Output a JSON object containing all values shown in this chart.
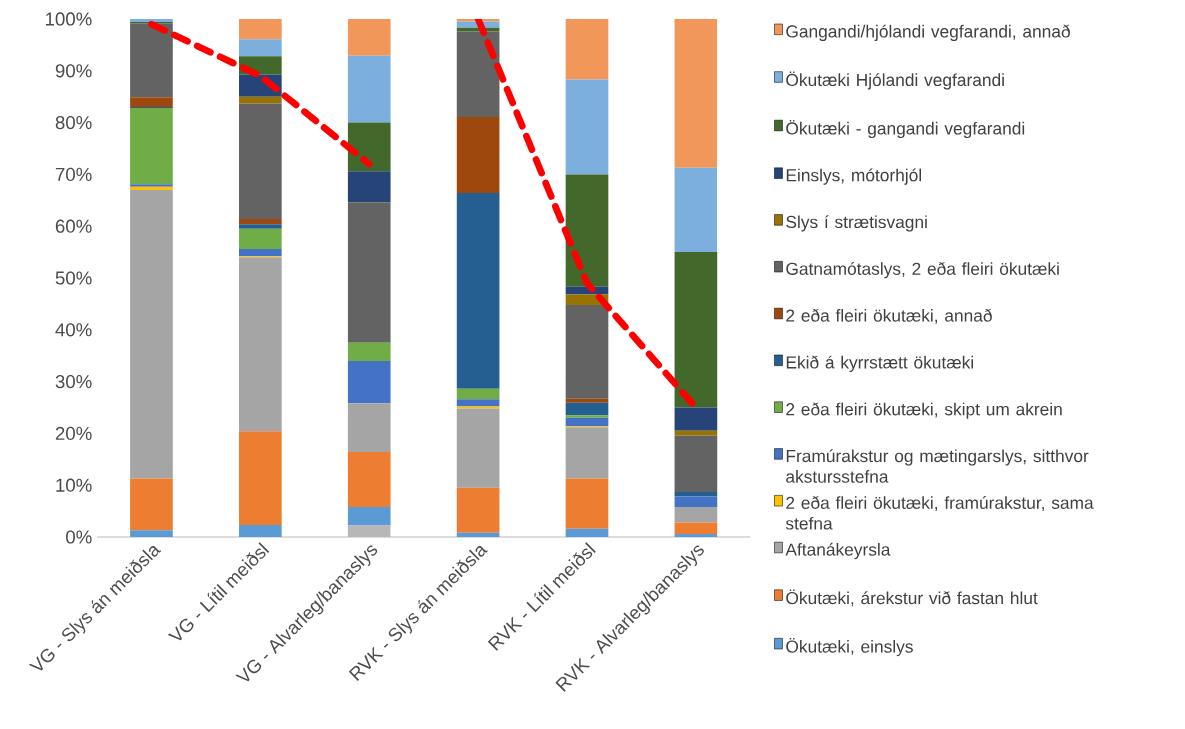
{
  "chart_data": {
    "type": "bar",
    "stacked": true,
    "legend": "right",
    "categories": [
      "VG - Slys án meiðsla",
      "VG - Lítil meiðsl",
      "VG - Alvarleg/banaslys",
      "RVK - Slys án meiðsla",
      "RVK - Lítil meiðsl",
      "RVK - Alvarleg/banaslys"
    ],
    "ylim": [
      0,
      100
    ],
    "yticks": [
      {
        "value": 0,
        "label": "0%"
      },
      {
        "value": 10,
        "label": "10%"
      },
      {
        "value": 20,
        "label": "20%"
      },
      {
        "value": 30,
        "label": "30%"
      },
      {
        "value": 40,
        "label": "40%"
      },
      {
        "value": 50,
        "label": "50%"
      },
      {
        "value": 60,
        "label": "60%"
      },
      {
        "value": 70,
        "label": "70%"
      },
      {
        "value": 80,
        "label": "80%"
      },
      {
        "value": 90,
        "label": "90%"
      },
      {
        "value": 100,
        "label": "100%"
      }
    ],
    "series": [
      {
        "color": "#b7b7b7",
        "values": [
          0,
          0,
          2.2,
          0,
          0,
          0
        ]
      },
      {
        "name": "Ökutæki, einslys",
        "color": "#5b9bd5",
        "values": [
          1.3,
          2.3,
          3.6,
          0.8,
          1.6,
          0.6
        ]
      },
      {
        "name": "Ökutæki, árekstur við fastan hlut",
        "color": "#ed7d31",
        "values": [
          10.0,
          18.1,
          10.6,
          8.7,
          9.7,
          2.2
        ]
      },
      {
        "name": "Aftanákeyrsla",
        "color": "#a5a5a5",
        "values": [
          55.7,
          33.6,
          9.4,
          15.3,
          9.9,
          3.0
        ]
      },
      {
        "name": "2 eða fleiri ökutæki, framúrakstur, sama stefna",
        "color": "#ffc000",
        "values": [
          0.6,
          0.2,
          0,
          0.4,
          0.2,
          0
        ]
      },
      {
        "name": "Framúrakstur og mætingarslys, sitthvor akstursstefna",
        "color": "#4472c4",
        "values": [
          0.5,
          1.4,
          8.2,
          1.4,
          1.6,
          2.0
        ]
      },
      {
        "name": "2 eða fleiri ökutæki, skipt um akrein",
        "color": "#70ad47",
        "values": [
          14.7,
          3.9,
          3.5,
          2.0,
          0.5,
          0
        ]
      },
      {
        "name": "Ekið á kyrrstætt ökutæki",
        "color": "#255e91",
        "values": [
          0.2,
          0.9,
          0,
          37.8,
          2.4,
          0.9
        ]
      },
      {
        "name": "2 eða fleiri ökutæki, annað",
        "color": "#9e480e",
        "values": [
          1.9,
          1.0,
          0,
          14.7,
          0.8,
          0
        ]
      },
      {
        "name": "Gatnamótaslys, 2 eða fleiri ökutæki",
        "color": "#636363",
        "values": [
          14.3,
          22.3,
          27.1,
          16.5,
          18.1,
          10.9
        ]
      },
      {
        "name": "Slys í strætisvagni",
        "color": "#997300",
        "values": [
          0,
          1.3,
          0,
          0,
          2.0,
          0.9
        ]
      },
      {
        "name": "Einslys, mótorhjól",
        "color": "#264478",
        "values": [
          0,
          4.3,
          6.0,
          0,
          1.5,
          4.5
        ]
      },
      {
        "name": "Ökutæki - gangandi vegfarandi",
        "color": "#43682b",
        "values": [
          0.2,
          3.5,
          9.4,
          0.7,
          21.7,
          30.0
        ]
      },
      {
        "name": "Ökutæki Hjólandi vegfarandi",
        "color": "#7cafdd",
        "values": [
          0.6,
          3.3,
          12.9,
          1.2,
          18.3,
          16.3
        ]
      },
      {
        "name": "Gangandi/hjólandi vegfarandi, annað",
        "color": "#f1975a",
        "values": [
          null,
          3.9,
          7.1,
          0.5,
          11.7,
          28.7
        ]
      },
      {
        "type": "line",
        "color": "#ff0000",
        "line_style": "dashed",
        "values": [
          99,
          89,
          72,
          null,
          null,
          null
        ]
      },
      {
        "type": "line",
        "color": "#ff0000",
        "line_style": "dashed",
        "values": [
          null,
          null,
          null,
          100,
          49,
          25
        ]
      }
    ]
  }
}
